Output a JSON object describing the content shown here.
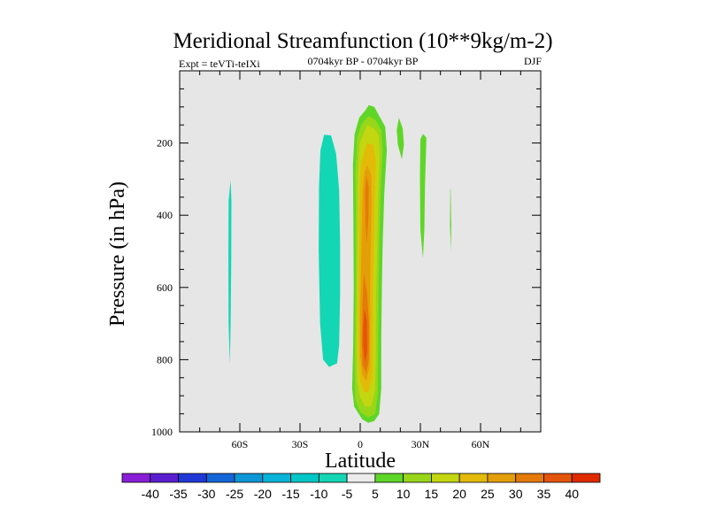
{
  "chart_data": {
    "type": "contour",
    "title": "Meridional Streamfunction (10**9kg/m-2)",
    "subtitle_left": "Expt = teVTi-teIXi",
    "subtitle_center": "0704kyr BP - 0704kyr BP",
    "subtitle_right": "DJF",
    "xlabel": "Latitude",
    "ylabel": "Pressure (in hPa)",
    "xlim": [
      -90,
      90
    ],
    "ylim": [
      1000,
      0
    ],
    "x_ticks": [
      {
        "value": -60,
        "label": "60S"
      },
      {
        "value": -30,
        "label": "30S"
      },
      {
        "value": 0,
        "label": "0"
      },
      {
        "value": 30,
        "label": "30N"
      },
      {
        "value": 60,
        "label": "60N"
      }
    ],
    "y_ticks": [
      {
        "value": 200,
        "label": "200"
      },
      {
        "value": 400,
        "label": "400"
      },
      {
        "value": 600,
        "label": "600"
      },
      {
        "value": 800,
        "label": "800"
      },
      {
        "value": 1000,
        "label": "1000"
      }
    ],
    "background_color": "#e6e6e6",
    "contour_levels": [
      -40,
      -35,
      -30,
      -25,
      -20,
      -15,
      -10,
      -5,
      5,
      10,
      15,
      20,
      25,
      30,
      35,
      40
    ],
    "colorbar_colors": [
      "#8a1ed6",
      "#5a1ed0",
      "#2238d6",
      "#1466d8",
      "#0d96d6",
      "#07b3d8",
      "#03c6c6",
      "#13d6b4",
      "#ececec",
      "#5ed628",
      "#98d61a",
      "#c4d610",
      "#e4ba08",
      "#e49e08",
      "#e47a0a",
      "#e4540a",
      "#e02a00"
    ],
    "regions": [
      {
        "value": -10,
        "color": "#13d6b4",
        "outline": [
          [
            -64.6,
            303
          ],
          [
            -64.2,
            360
          ],
          [
            -64.3,
            520
          ],
          [
            -64.6,
            700
          ],
          [
            -65.0,
            813
          ],
          [
            -65.6,
            700
          ],
          [
            -65.7,
            520
          ],
          [
            -65.6,
            360
          ]
        ]
      },
      {
        "value": -10,
        "color": "#13d6b4",
        "outline": [
          [
            -18,
            177
          ],
          [
            -14.5,
            179
          ],
          [
            -12,
            230
          ],
          [
            -10.5,
            330
          ],
          [
            -10,
            480
          ],
          [
            -10,
            620
          ],
          [
            -10.5,
            760
          ],
          [
            -11.5,
            810
          ],
          [
            -15.5,
            820
          ],
          [
            -18.5,
            800
          ],
          [
            -20,
            700
          ],
          [
            -20.7,
            500
          ],
          [
            -20.5,
            320
          ],
          [
            -19.8,
            220
          ]
        ]
      },
      {
        "value": 5,
        "color": "#5ed628",
        "outline": [
          [
            19.3,
            130
          ],
          [
            21.2,
            160
          ],
          [
            21.8,
            205
          ],
          [
            20.8,
            245
          ],
          [
            18.8,
            205
          ],
          [
            18.2,
            165
          ]
        ]
      },
      {
        "value": 5,
        "color": "#5ed628",
        "outline": [
          [
            31.3,
            175
          ],
          [
            33.0,
            185
          ],
          [
            32.3,
            320
          ],
          [
            32.0,
            440
          ],
          [
            31.3,
            520
          ],
          [
            30.0,
            440
          ],
          [
            29.8,
            300
          ],
          [
            30.0,
            190
          ]
        ]
      },
      {
        "value": 5,
        "color": "#5ed628",
        "outline": [
          [
            45.1,
            325
          ],
          [
            45.4,
            430
          ],
          [
            45.2,
            500
          ],
          [
            44.8,
            430
          ],
          [
            44.9,
            330
          ]
        ]
      },
      {
        "value": 5,
        "color": "#5ed628",
        "outline": [
          [
            4.3,
            95
          ],
          [
            7,
            100
          ],
          [
            12.5,
            155
          ],
          [
            13.3,
            220
          ],
          [
            12.0,
            340
          ],
          [
            11.2,
            480
          ],
          [
            10.8,
            600
          ],
          [
            10.5,
            740
          ],
          [
            10.5,
            880
          ],
          [
            9.5,
            950
          ],
          [
            7,
            970
          ],
          [
            4,
            975
          ],
          [
            1,
            965
          ],
          [
            -3,
            930
          ],
          [
            -4,
            880
          ],
          [
            -3.5,
            760
          ],
          [
            -3.2,
            600
          ],
          [
            -3.4,
            420
          ],
          [
            -3.6,
            260
          ],
          [
            -2.8,
            175
          ],
          [
            -0.5,
            130
          ],
          [
            2.5,
            110
          ]
        ]
      },
      {
        "value": 10,
        "color": "#98d61a",
        "outline": [
          [
            4,
            125
          ],
          [
            7.5,
            135
          ],
          [
            10.5,
            165
          ],
          [
            11.2,
            220
          ],
          [
            10.2,
            340
          ],
          [
            9.5,
            480
          ],
          [
            9.2,
            600
          ],
          [
            9.0,
            760
          ],
          [
            8.8,
            890
          ],
          [
            7.5,
            950
          ],
          [
            4,
            960
          ],
          [
            0,
            945
          ],
          [
            -2.5,
            910
          ],
          [
            -2.8,
            800
          ],
          [
            -2.3,
            620
          ],
          [
            -2.2,
            430
          ],
          [
            -2.4,
            280
          ],
          [
            -1.5,
            185
          ],
          [
            0.5,
            150
          ]
        ]
      },
      {
        "value": 15,
        "color": "#c4d610",
        "outline": [
          [
            3.5,
            150
          ],
          [
            7,
            160
          ],
          [
            9.3,
            180
          ],
          [
            9.8,
            235
          ],
          [
            9,
            350
          ],
          [
            8.5,
            480
          ],
          [
            8,
            620
          ],
          [
            7.8,
            780
          ],
          [
            7.5,
            880
          ],
          [
            5.5,
            930
          ],
          [
            2.5,
            930
          ],
          [
            0,
            905
          ],
          [
            -1.5,
            860
          ],
          [
            -1.8,
            740
          ],
          [
            -1.5,
            580
          ],
          [
            -1.3,
            420
          ],
          [
            -1.2,
            290
          ],
          [
            -0.2,
            200
          ]
        ]
      },
      {
        "value": 20,
        "color": "#e4ba08",
        "outline": [
          [
            3.5,
            200
          ],
          [
            6.5,
            205
          ],
          [
            7.8,
            250
          ],
          [
            7.2,
            360
          ],
          [
            6.8,
            480
          ],
          [
            6.3,
            620
          ],
          [
            6.2,
            760
          ],
          [
            6,
            850
          ],
          [
            4,
            890
          ],
          [
            2,
            890
          ],
          [
            0,
            860
          ],
          [
            -0.8,
            790
          ],
          [
            -0.8,
            660
          ],
          [
            -0.5,
            500
          ],
          [
            -0.2,
            360
          ],
          [
            0.2,
            260
          ]
        ]
      },
      {
        "value": 25,
        "color": "#e49e08",
        "outline": [
          [
            3.5,
            260
          ],
          [
            5.5,
            290
          ],
          [
            5.7,
            380
          ],
          [
            5.3,
            480
          ],
          [
            4.9,
            600
          ],
          [
            5,
            720
          ],
          [
            4.7,
            820
          ],
          [
            3,
            860
          ],
          [
            1,
            840
          ],
          [
            0,
            790
          ],
          [
            -0.1,
            680
          ],
          [
            0.4,
            560
          ],
          [
            0.8,
            440
          ],
          [
            1.3,
            330
          ],
          [
            2.2,
            280
          ]
        ]
      },
      {
        "value": 30,
        "color": "#e47a0a",
        "outline": [
          [
            3.1,
            290
          ],
          [
            4.2,
            320
          ],
          [
            4.1,
            400
          ],
          [
            3.2,
            480
          ],
          [
            2.6,
            420
          ],
          [
            2.4,
            340
          ]
        ]
      },
      {
        "value": 30,
        "color": "#e47a0a",
        "outline": [
          [
            1.8,
            560
          ],
          [
            3.3,
            610
          ],
          [
            4.4,
            700
          ],
          [
            4.3,
            800
          ],
          [
            3,
            840
          ],
          [
            1.2,
            815
          ],
          [
            0.8,
            750
          ],
          [
            1.2,
            640
          ]
        ]
      },
      {
        "value": 35,
        "color": "#e4540a",
        "outline": [
          [
            2.1,
            660
          ],
          [
            3.3,
            690
          ],
          [
            3.5,
            780
          ],
          [
            2.3,
            810
          ],
          [
            1.4,
            760
          ],
          [
            1.6,
            700
          ]
        ]
      }
    ]
  }
}
